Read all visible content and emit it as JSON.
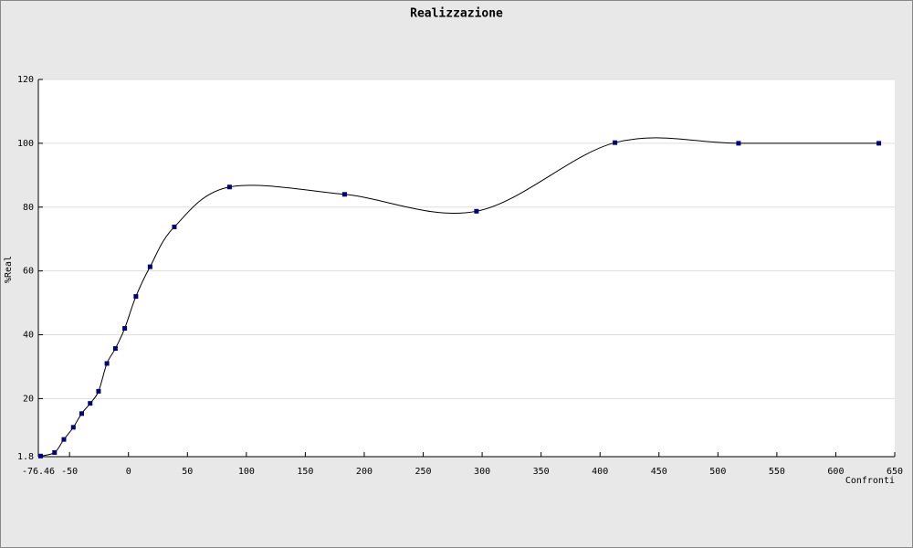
{
  "chart_data": {
    "type": "line",
    "title": "Realizzazione",
    "x_label": "Confronti",
    "y_label": "%Real",
    "x": [
      -74.6,
      -62.7,
      -54.8,
      -46.8,
      -39.7,
      -32.5,
      -25.4,
      -18.3,
      -11.1,
      -3.2,
      6.3,
      18.3,
      38.9,
      85.7,
      183.3,
      295.2,
      412.7,
      517.5,
      636.5
    ],
    "series": [
      {
        "name": "%Real",
        "color": "#000080",
        "line_color": "#000000",
        "values": [
          2,
          3.1,
          7.2,
          11,
          15.3,
          18.5,
          22.3,
          31,
          35.7,
          42,
          52,
          61.3,
          73.8,
          86.3,
          84,
          78.7,
          100.2,
          100,
          100
        ]
      }
    ],
    "xlim": [
      -76.46,
      650
    ],
    "xticks": [
      -76.46,
      -50,
      0,
      50,
      100,
      150,
      200,
      250,
      300,
      350,
      400,
      450,
      500,
      550,
      600,
      650
    ],
    "ylim": [
      1.8,
      120
    ],
    "yticks": [
      1.8,
      20,
      40,
      60,
      80,
      100,
      120
    ],
    "grid": true,
    "smooth": true
  }
}
